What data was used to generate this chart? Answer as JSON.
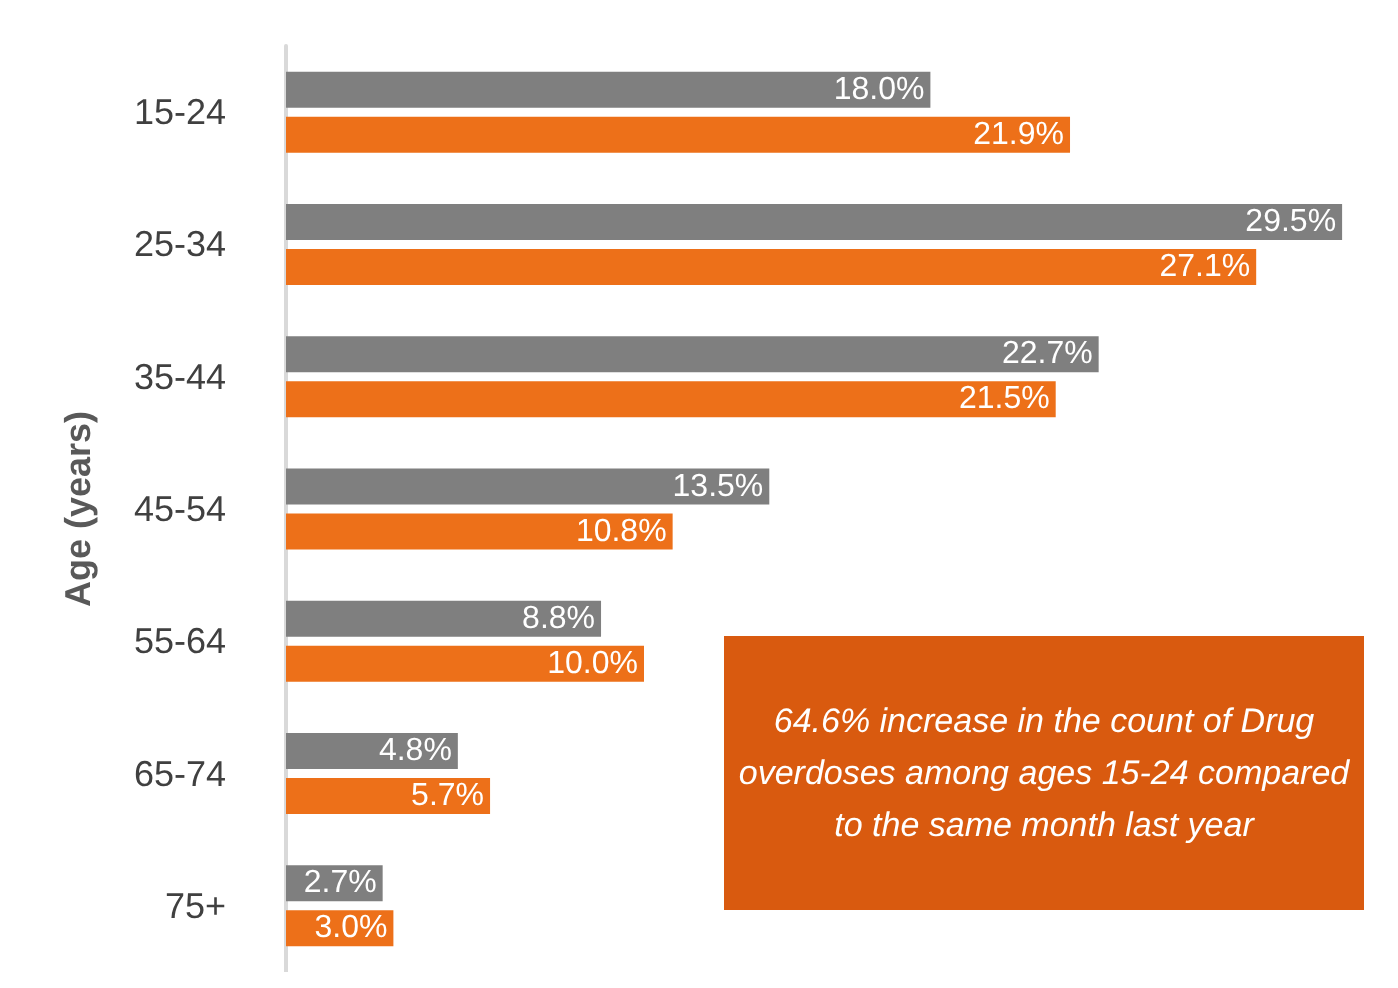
{
  "chart_data": {
    "type": "bar",
    "orientation": "horizontal",
    "ylabel": "Age (years)",
    "categories": [
      "15-24",
      "25-34",
      "35-44",
      "45-54",
      "55-64",
      "65-74",
      "75+"
    ],
    "series": [
      {
        "color": "#7f7f7f",
        "values": [
          18.0,
          29.5,
          22.7,
          13.5,
          8.8,
          4.8,
          2.7
        ],
        "value_labels": [
          "18.0%",
          "29.5%",
          "22.7%",
          "13.5%",
          "8.8%",
          "4.8%",
          "2.7%"
        ]
      },
      {
        "color": "#ed7019",
        "values": [
          21.9,
          27.1,
          21.5,
          10.8,
          10.0,
          5.7,
          3.0
        ],
        "value_labels": [
          "21.9%",
          "27.1%",
          "21.5%",
          "10.8%",
          "10.0%",
          "5.7%",
          "3.0%"
        ]
      }
    ],
    "annotations": [
      "64.6% increase in the count of Drug overdoses among ages 15-24 compared to the same month last year"
    ],
    "tick_labels": "y"
  }
}
